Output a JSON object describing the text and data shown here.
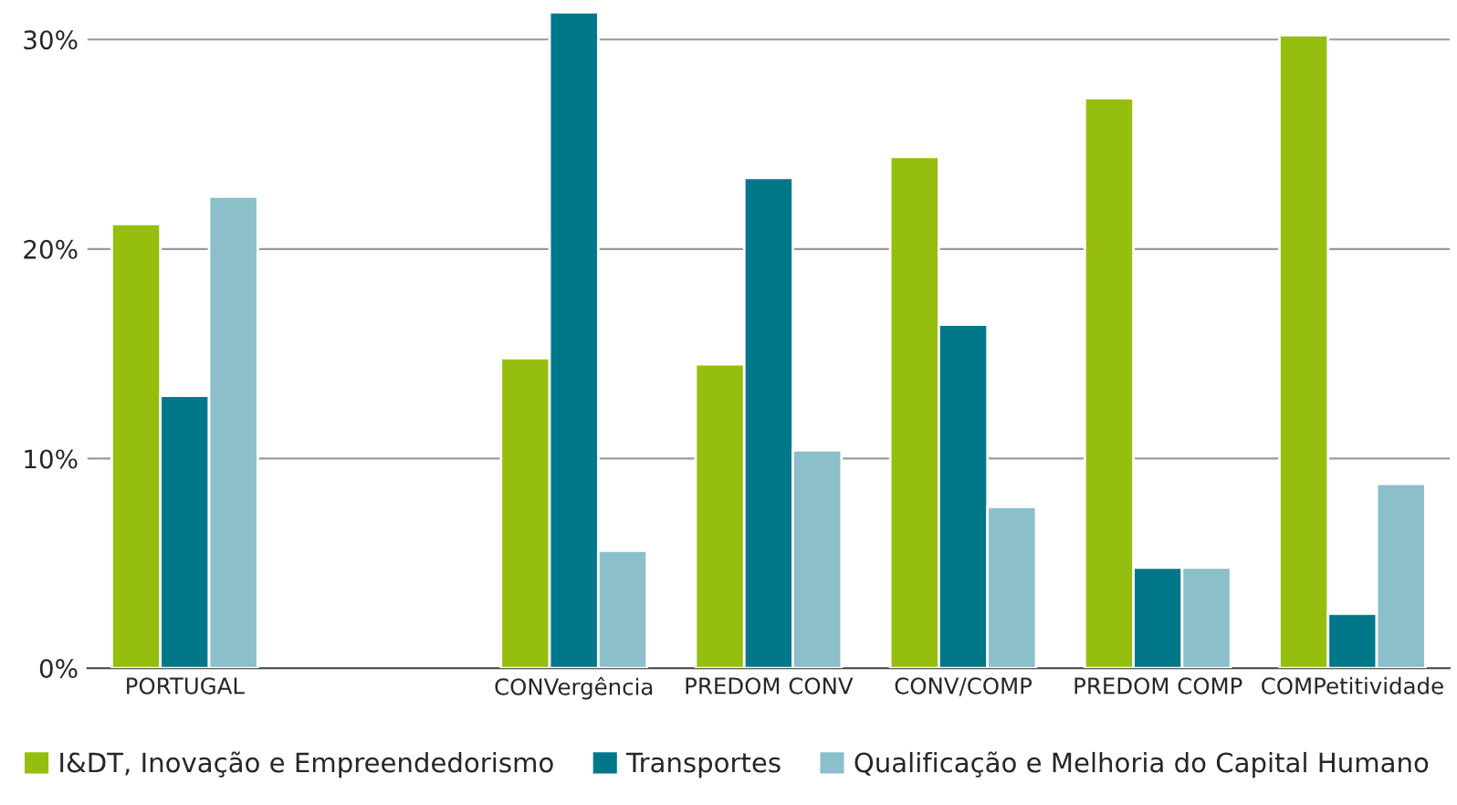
{
  "chart_data": {
    "type": "bar",
    "categories": [
      "PORTUGAL",
      null,
      "CONVergência",
      "PREDOM CONV",
      "CONV/COMP",
      "PREDOM COMP",
      "COMPetitividade"
    ],
    "series": [
      {
        "name": "I&DT, Inovação e Empreendedorismo",
        "color": "#95be0e",
        "values": [
          21.2,
          null,
          14.8,
          14.5,
          24.4,
          27.2,
          30.2
        ]
      },
      {
        "name": "Transportes",
        "color": "#00788a",
        "values": [
          13.0,
          null,
          31.3,
          23.4,
          16.4,
          4.8,
          2.6
        ]
      },
      {
        "name": "Qualificação e Melhoria do Capital Humano",
        "color": "#8bbfca",
        "values": [
          22.5,
          null,
          5.6,
          10.4,
          7.7,
          4.8,
          8.8
        ]
      }
    ],
    "ylim": [
      0,
      31.5
    ],
    "yticks": [
      {
        "value": 0,
        "label": "0%"
      },
      {
        "value": 10,
        "label": "10%"
      },
      {
        "value": 20,
        "label": "20%"
      },
      {
        "value": 30,
        "label": "30%"
      }
    ],
    "grid": "y",
    "legend": "bottom"
  }
}
